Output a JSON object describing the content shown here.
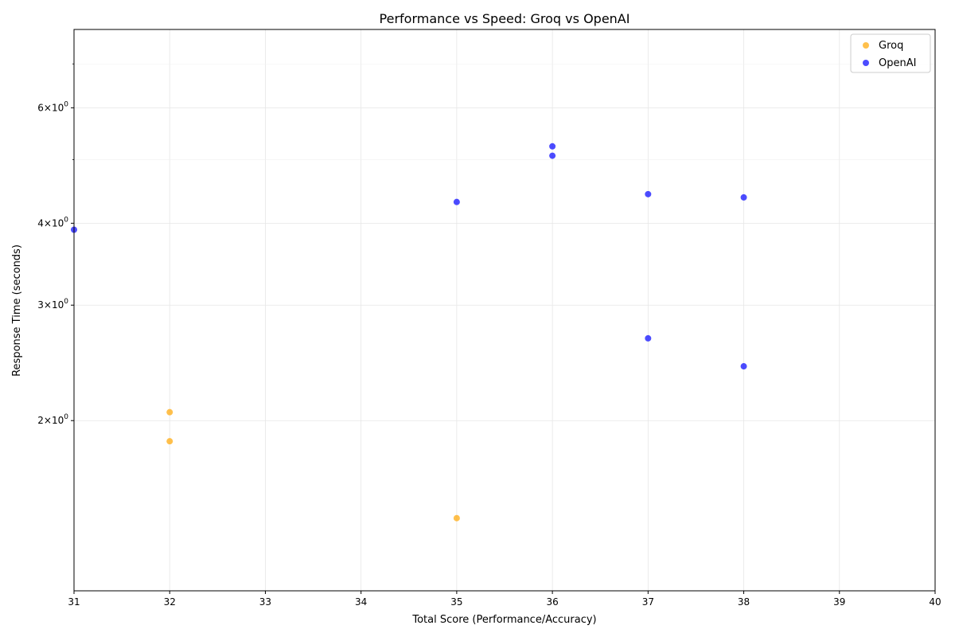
{
  "chart_data": {
    "type": "scatter",
    "title": "Performance vs Speed: Groq vs OpenAI",
    "xlabel": "Total Score (Performance/Accuracy)",
    "ylabel": "Response Time (seconds)",
    "xlim": [
      31,
      40
    ],
    "ylim": [
      1.1,
      7.9
    ],
    "yscale": "log",
    "grid": true,
    "legend_position": "top-right",
    "x_ticks": [
      "31",
      "32",
      "33",
      "34",
      "35",
      "36",
      "37",
      "38",
      "39",
      "40"
    ],
    "y_ticks": [
      {
        "value": 2,
        "base": "2",
        "exp": "0"
      },
      {
        "value": 3,
        "base": "3",
        "exp": "0"
      },
      {
        "value": 4,
        "base": "4",
        "exp": "0"
      },
      {
        "value": 6,
        "base": "6",
        "exp": "0"
      }
    ],
    "y_minor_ticks": [
      5,
      7
    ],
    "series": [
      {
        "name": "Groq",
        "color": "#FFA500",
        "points": [
          {
            "x": 32,
            "y": 2.06
          },
          {
            "x": 32,
            "y": 1.86
          },
          {
            "x": 35,
            "y": 1.42
          }
        ]
      },
      {
        "name": "OpenAI",
        "color": "#0000FF",
        "points": [
          {
            "x": 31,
            "y": 3.91
          },
          {
            "x": 35,
            "y": 4.31
          },
          {
            "x": 36,
            "y": 5.24
          },
          {
            "x": 36,
            "y": 5.07
          },
          {
            "x": 37,
            "y": 4.43
          },
          {
            "x": 38,
            "y": 4.38
          },
          {
            "x": 37,
            "y": 2.67
          },
          {
            "x": 38,
            "y": 2.42
          }
        ]
      }
    ]
  }
}
